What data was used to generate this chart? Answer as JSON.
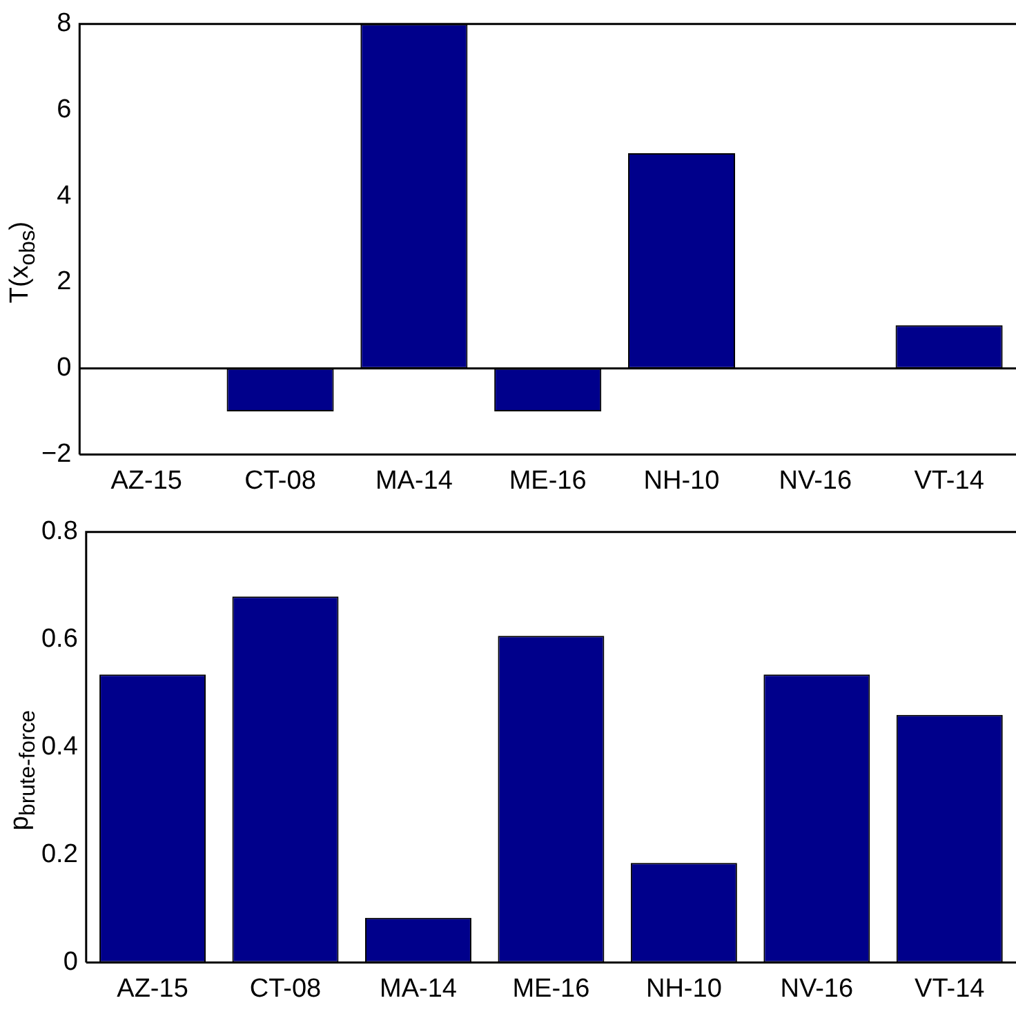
{
  "chart_data": [
    {
      "type": "bar",
      "ylabel": "T(x$_{obs}$)",
      "categories": [
        "AZ-15",
        "CT-08",
        "MA-14",
        "ME-16",
        "NH-10",
        "NV-16",
        "VT-14"
      ],
      "values": [
        0,
        -1,
        8,
        -1,
        5,
        0,
        1
      ],
      "color": "#00008b",
      "ylim": [
        -2,
        8
      ],
      "yticks": [
        -2,
        0,
        2,
        4,
        6,
        8
      ],
      "grid": false,
      "ref_lines": [
        {
          "axis": "y",
          "value": 0,
          "color": "#000000"
        }
      ]
    },
    {
      "type": "bar",
      "ylabel": "p$_{brute-force}$",
      "categories": [
        "AZ-15",
        "CT-08",
        "MA-14",
        "ME-16",
        "NH-10",
        "NV-16",
        "VT-14"
      ],
      "values": [
        0.535,
        0.68,
        0.083,
        0.607,
        0.185,
        0.535,
        0.46
      ],
      "color": "#00008b",
      "ylim": [
        0,
        0.8
      ],
      "yticks": [
        0,
        0.2,
        0.4,
        0.6,
        0.8
      ],
      "grid": false
    }
  ]
}
